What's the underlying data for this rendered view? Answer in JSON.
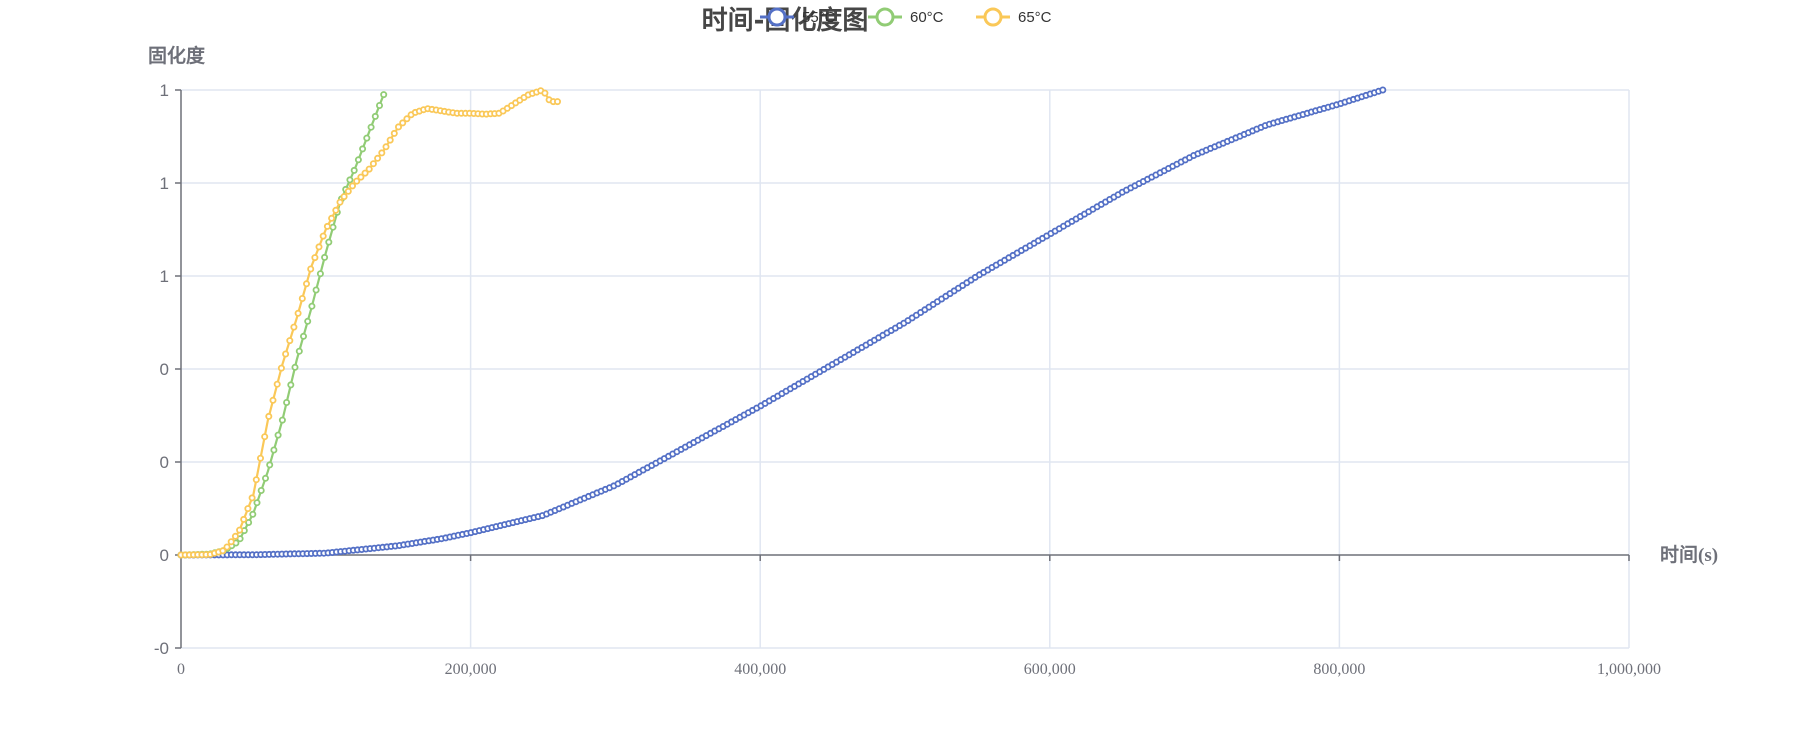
{
  "chart_data": {
    "type": "line",
    "title": "时间-固化度图",
    "xlabel": "时间(s)",
    "ylabel": "固化度",
    "xlim": [
      0,
      1000000
    ],
    "ylim": [
      -0.2,
      1
    ],
    "x_ticks": [
      "0",
      "200,000",
      "400,000",
      "600,000",
      "800,000",
      "1,000,000"
    ],
    "y_ticks": [
      "-0",
      "0",
      "0",
      "0",
      "1",
      "1",
      "1"
    ],
    "grid": true,
    "legend_position": "top-center",
    "series": [
      {
        "name": "55°C",
        "color": "#5470c6",
        "marker": "hollow-circle",
        "points": [
          [
            0,
            0
          ],
          [
            50000,
            0.0005
          ],
          [
            100000,
            0.004
          ],
          [
            150000,
            0.02
          ],
          [
            180000,
            0.035
          ],
          [
            200000,
            0.048
          ],
          [
            250000,
            0.085
          ],
          [
            300000,
            0.15
          ],
          [
            350000,
            0.235
          ],
          [
            400000,
            0.32
          ],
          [
            450000,
            0.41
          ],
          [
            500000,
            0.5
          ],
          [
            550000,
            0.6
          ],
          [
            600000,
            0.69
          ],
          [
            650000,
            0.78
          ],
          [
            700000,
            0.86
          ],
          [
            750000,
            0.925
          ],
          [
            800000,
            0.97
          ],
          [
            830000,
            1.0
          ]
        ]
      },
      {
        "name": "60°C",
        "color": "#91cc75",
        "marker": "hollow-circle",
        "points": [
          [
            0,
            0
          ],
          [
            20000,
            0.002
          ],
          [
            30000,
            0.01
          ],
          [
            40000,
            0.03
          ],
          [
            50000,
            0.09
          ],
          [
            60000,
            0.18
          ],
          [
            70000,
            0.29
          ],
          [
            80000,
            0.42
          ],
          [
            90000,
            0.53
          ],
          [
            100000,
            0.65
          ],
          [
            110000,
            0.76
          ],
          [
            120000,
            0.83
          ],
          [
            130000,
            0.91
          ],
          [
            140000,
            0.99
          ]
        ]
      },
      {
        "name": "65°C",
        "color": "#fac858",
        "marker": "hollow-circle",
        "points": [
          [
            0,
            0
          ],
          [
            20000,
            0.001
          ],
          [
            30000,
            0.01
          ],
          [
            40000,
            0.05
          ],
          [
            50000,
            0.13
          ],
          [
            60000,
            0.29
          ],
          [
            70000,
            0.41
          ],
          [
            80000,
            0.51
          ],
          [
            90000,
            0.62
          ],
          [
            100000,
            0.7
          ],
          [
            110000,
            0.76
          ],
          [
            120000,
            0.8
          ],
          [
            130000,
            0.83
          ],
          [
            140000,
            0.87
          ],
          [
            150000,
            0.92
          ],
          [
            160000,
            0.95
          ],
          [
            170000,
            0.96
          ],
          [
            180000,
            0.955
          ],
          [
            190000,
            0.95
          ],
          [
            200000,
            0.95
          ],
          [
            210000,
            0.948
          ],
          [
            220000,
            0.95
          ],
          [
            230000,
            0.97
          ],
          [
            240000,
            0.99
          ],
          [
            250000,
            1.0
          ],
          [
            255000,
            0.975
          ],
          [
            260000,
            0.975
          ]
        ]
      }
    ]
  }
}
